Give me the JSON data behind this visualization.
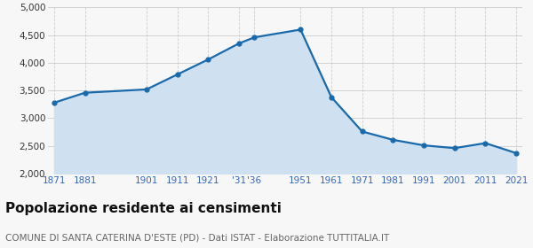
{
  "years": [
    1871,
    1881,
    1901,
    1911,
    1921,
    1931,
    1936,
    1951,
    1961,
    1971,
    1981,
    1991,
    2001,
    2011,
    2021
  ],
  "population": [
    3280,
    3460,
    3520,
    3790,
    4060,
    4350,
    4460,
    4600,
    3380,
    2760,
    2610,
    2510,
    2460,
    2550,
    2370
  ],
  "x_tick_labels": [
    "1871",
    "1881",
    "1901",
    "1911",
    "1921",
    "'31",
    "'36",
    "1951",
    "1961",
    "1971",
    "1981",
    "1991",
    "2001",
    "2011",
    "2021"
  ],
  "ylim": [
    2000,
    5000
  ],
  "yticks": [
    2000,
    2500,
    3000,
    3500,
    4000,
    4500,
    5000
  ],
  "line_color": "#1a6aab",
  "fill_color": "#cfe0f0",
  "marker_color": "#1a6aab",
  "background_color": "#f7f7f7",
  "grid_color": "#cccccc",
  "tick_label_color": "#3366bb",
  "title": "Popolazione residente ai censimenti",
  "subtitle": "COMUNE DI SANTA CATERINA D'ESTE (PD) - Dati ISTAT - Elaborazione TUTTITALIA.IT",
  "title_fontsize": 11,
  "subtitle_fontsize": 7.5
}
